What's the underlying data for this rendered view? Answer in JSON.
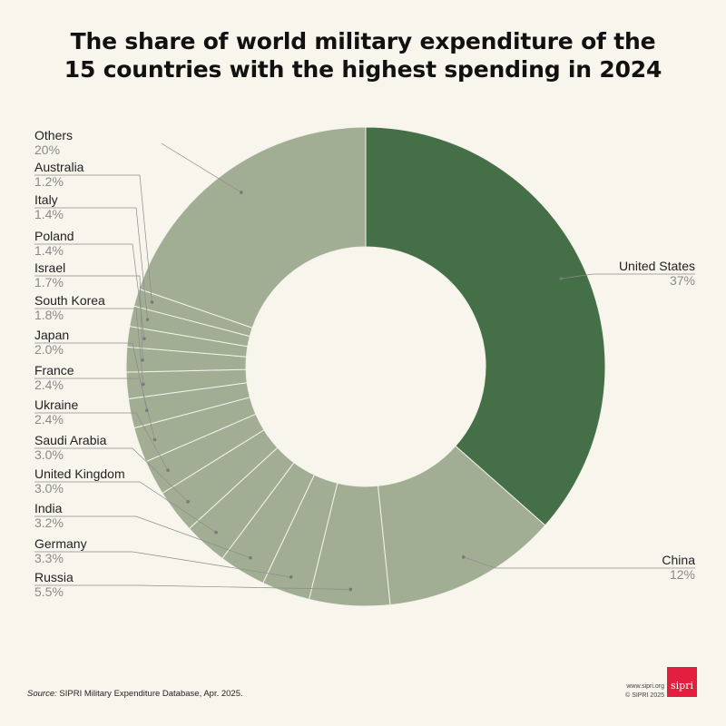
{
  "title": {
    "line1": "The share of world military expenditure of the",
    "line2": "15 countries with the highest spending in 2024"
  },
  "colors": {
    "highlight": "#456f46",
    "other": "#a2ae94",
    "separator": "#f2f2ea",
    "leader": "#8c8c8c",
    "brand": "#e41e3f"
  },
  "chart_data": {
    "type": "pie",
    "variant": "donut",
    "title": "The share of world military expenditure of the 15 countries with the highest spending in 2024",
    "unit": "%",
    "slices": [
      {
        "label": "United States",
        "value": 37,
        "display": "37%",
        "highlight": true
      },
      {
        "label": "China",
        "value": 12,
        "display": "12%"
      },
      {
        "label": "Russia",
        "value": 5.5,
        "display": "5.5%"
      },
      {
        "label": "Germany",
        "value": 3.3,
        "display": "3.3%"
      },
      {
        "label": "India",
        "value": 3.2,
        "display": "3.2%"
      },
      {
        "label": "United Kingdom",
        "value": 3.0,
        "display": "3.0%"
      },
      {
        "label": "Saudi Arabia",
        "value": 3.0,
        "display": "3.0%"
      },
      {
        "label": "Ukraine",
        "value": 2.4,
        "display": "2.4%"
      },
      {
        "label": "France",
        "value": 2.4,
        "display": "2.4%"
      },
      {
        "label": "Japan",
        "value": 2.0,
        "display": "2.0%"
      },
      {
        "label": "South Korea",
        "value": 1.8,
        "display": "1.8%"
      },
      {
        "label": "Israel",
        "value": 1.7,
        "display": "1.7%"
      },
      {
        "label": "Poland",
        "value": 1.4,
        "display": "1.4%"
      },
      {
        "label": "Italy",
        "value": 1.4,
        "display": "1.4%"
      },
      {
        "label": "Australia",
        "value": 1.2,
        "display": "1.2%"
      },
      {
        "label": "Others",
        "value": 20,
        "display": "20%"
      }
    ]
  },
  "source": {
    "prefix": "Source:",
    "text": "SIPRI Military Expenditure Database, Apr. 2025."
  },
  "credits": {
    "url": "www.sipri.org",
    "copyright": "© SIPRI 2025"
  },
  "logo": {
    "text": "sipri"
  }
}
